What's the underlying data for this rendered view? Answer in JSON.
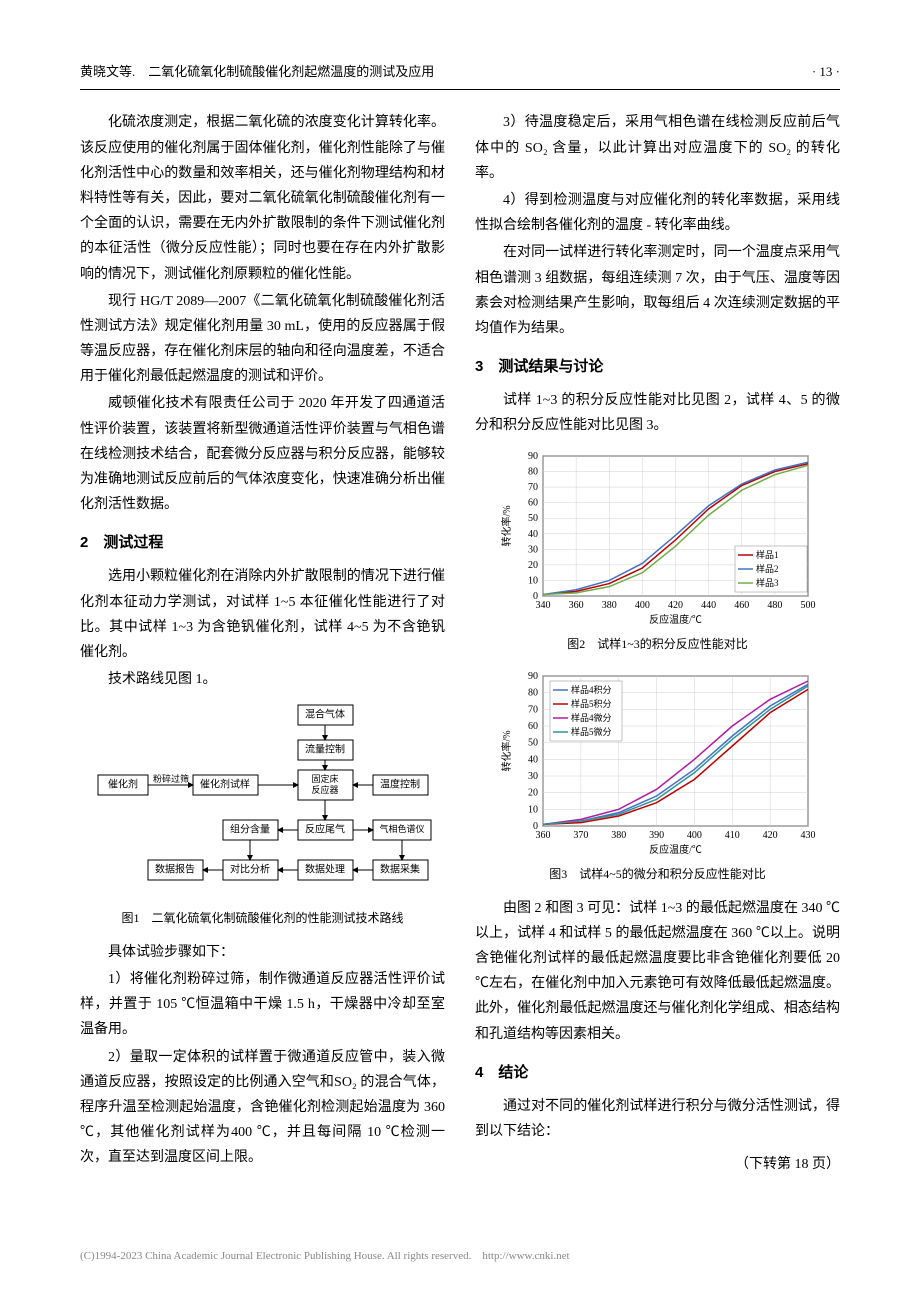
{
  "header": {
    "author_title": "黄晓文等.　二氧化硫氧化制硫酸催化剂起燃温度的测试及应用",
    "page_number": "· 13 ·"
  },
  "left_column": {
    "para1": "化硫浓度测定，根据二氧化硫的浓度变化计算转化率。该反应使用的催化剂属于固体催化剂，催化剂性能除了与催化剂活性中心的数量和效率相关，还与催化剂物理结构和材料特性等有关，因此，要对二氧化硫氧化制硫酸催化剂有一个全面的认识，需要在无内外扩散限制的条件下测试催化剂的本征活性（微分反应性能）；同时也要在存在内外扩散影响的情况下，测试催化剂原颗粒的催化性能。",
    "para2": "现行 HG/T 2089—2007《二氧化硫氧化制硫酸催化剂活性测试方法》规定催化剂用量 30 mL，使用的反应器属于假等温反应器，存在催化剂床层的轴向和径向温度差，不适合用于催化剂最低起燃温度的测试和评价。",
    "para3": "威顿催化技术有限责任公司于 2020 年开发了四通道活性评价装置，该装置将新型微通道活性评价装置与气相色谱在线检测技术结合，配套微分反应器与积分反应器，能够较为准确地测试反应前后的气体浓度变化，快速准确分析出催化剂活性数据。",
    "heading2": "2　测试过程",
    "para4": "选用小颗粒催化剂在消除内外扩散限制的情况下进行催化剂本征动力学测试，对试样 1~5 本征催化性能进行了对比。其中试样 1~3 为含铯钒催化剂，试样 4~5 为不含铯钒催化剂。",
    "para5": "技术路线见图 1。",
    "fig1_caption": "图1　二氧化硫氧化制硫酸催化剂的性能测试技术路线",
    "para6": "具体试验步骤如下：",
    "para7": "1）将催化剂粉碎过筛，制作微通道反应器活性评价试样，并置于 105 ℃恒温箱中干燥 1.5 h，干燥器中冷却至室温备用。",
    "para8": "2）量取一定体积的试样置于微通道反应管中，装入微通道反应器，按照设定的比例通入空气和SO₂ 的混合气体，程序升温至检测起始温度，含铯催化剂检测起始温度为 360 ℃，其他催化剂试样为400 ℃，并且每间隔 10 ℃检测一次，直至达到温度区间上限。"
  },
  "right_column": {
    "para9": "3）待温度稳定后，采用气相色谱在线检测反应前后气体中的 SO₂ 含量，以此计算出对应温度下的 SO₂ 的转化率。",
    "para10": "4）得到检测温度与对应催化剂的转化率数据，采用线性拟合绘制各催化剂的温度 - 转化率曲线。",
    "para11": "在对同一试样进行转化率测定时，同一个温度点采用气相色谱测 3 组数据，每组连续测 7 次，由于气压、温度等因素会对检测结果产生影响，取每组后 4 次连续测定数据的平均值作为结果。",
    "heading3": "3　测试结果与讨论",
    "para12": "试样 1~3 的积分反应性能对比见图 2，试样 4、5 的微分和积分反应性能对比见图 3。",
    "fig2_caption": "图2　试样1~3的积分反应性能对比",
    "fig3_caption": "图3　试样4~5的微分和积分反应性能对比",
    "para13": "由图 2 和图 3 可见：试样 1~3 的最低起燃温度在 340 ℃以上，试样 4 和试样 5 的最低起燃温度在 360 ℃以上。说明含铯催化剂试样的最低起燃温度要比非含铯催化剂要低 20 ℃左右，在催化剂中加入元素铯可有效降低最低起燃温度。此外，催化剂最低起燃温度还与催化剂化学组成、相态结构和孔道结构等因素相关。",
    "heading4": "4　结论",
    "para14": "通过对不同的催化剂试样进行积分与微分活性测试，得到以下结论：",
    "continued": "（下转第 18 页）"
  },
  "flowchart": {
    "boxes": {
      "catalyst": "催化剂",
      "crush": "粉碎过筛",
      "sample": "催化剂试样",
      "mixgas": "混合气体",
      "flowctrl": "流量控制",
      "reactor": "固定床反应器",
      "tempctrl": "温度控制",
      "composition": "组分含量",
      "tailgas": "反应尾气",
      "gc": "气相色谱仪",
      "report": "数据报告",
      "compare": "对比分析",
      "process": "数据处理",
      "collect": "数据采集"
    }
  },
  "chart2": {
    "type": "line",
    "xlabel": "反应温度/℃",
    "ylabel": "转化率/%",
    "xlim": [
      340,
      500
    ],
    "ylim": [
      0,
      90
    ],
    "xtick_step": 20,
    "ytick_step": 10,
    "series": [
      {
        "name": "样品1",
        "color": "#c00000",
        "x": [
          340,
          360,
          380,
          400,
          420,
          440,
          460,
          480,
          500
        ],
        "y": [
          1,
          3,
          8,
          18,
          36,
          56,
          71,
          80,
          85
        ]
      },
      {
        "name": "样品2",
        "color": "#4472c4",
        "x": [
          340,
          360,
          380,
          400,
          420,
          440,
          460,
          480,
          500
        ],
        "y": [
          1,
          4,
          10,
          21,
          39,
          58,
          72,
          81,
          86
        ]
      },
      {
        "name": "样品3",
        "color": "#70ad47",
        "x": [
          340,
          360,
          380,
          400,
          420,
          440,
          460,
          480,
          500
        ],
        "y": [
          1,
          2,
          6,
          15,
          32,
          52,
          68,
          78,
          84
        ]
      }
    ],
    "legend_pos": "right",
    "background_color": "#ffffff",
    "grid_color": "#d0d0d0",
    "label_fontsize": 10
  },
  "chart3": {
    "type": "line",
    "xlabel": "反应温度/℃",
    "ylabel": "转化率/%",
    "xlim": [
      360,
      430
    ],
    "ylim": [
      0,
      90
    ],
    "xtick_step": 10,
    "ytick_step": 10,
    "series": [
      {
        "name": "样品4积分",
        "color": "#4472c4",
        "x": [
          360,
          370,
          380,
          390,
          400,
          410,
          420,
          430
        ],
        "y": [
          1,
          3,
          8,
          18,
          34,
          54,
          72,
          85
        ]
      },
      {
        "name": "样品5积分",
        "color": "#c00000",
        "x": [
          360,
          370,
          380,
          390,
          400,
          410,
          420,
          430
        ],
        "y": [
          1,
          2,
          6,
          14,
          28,
          48,
          68,
          82
        ]
      },
      {
        "name": "样品4微分",
        "color": "#b11aa5",
        "x": [
          360,
          370,
          380,
          390,
          400,
          410,
          420,
          430
        ],
        "y": [
          1,
          4,
          10,
          22,
          40,
          60,
          76,
          87
        ]
      },
      {
        "name": "样品5微分",
        "color": "#2e9599",
        "x": [
          360,
          370,
          380,
          390,
          400,
          410,
          420,
          430
        ],
        "y": [
          1,
          3,
          7,
          16,
          32,
          52,
          70,
          84
        ]
      }
    ],
    "legend_pos": "upper-left",
    "background_color": "#ffffff",
    "grid_color": "#d0d0d0",
    "label_fontsize": 10
  },
  "footer": {
    "copyright": "(C)1994-2023 China Academic Journal Electronic Publishing House. All rights reserved.　http://www.cnki.net"
  }
}
